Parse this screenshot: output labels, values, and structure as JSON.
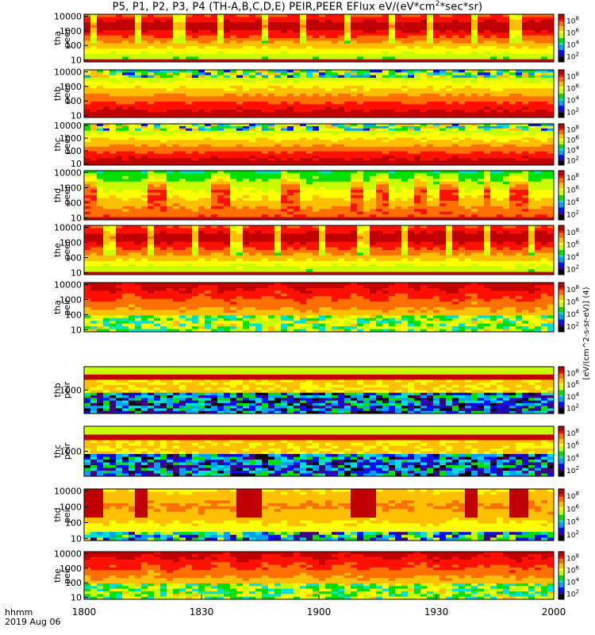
{
  "title": {
    "prefix": "P5, P1, P2, P3, P4 (TH-A,B,C,D,E) PEIR,PEER EFlux eV/(eV*cm",
    "sup1": "2",
    "suffix": "*sec*sr)"
  },
  "footer": {
    "line1": "hhmm",
    "line2": "2019 Aug 06"
  },
  "colors": {
    "palette": [
      "#000000",
      "#3a0080",
      "#0010ff",
      "#00a0ff",
      "#00e0d0",
      "#00e000",
      "#c8ff00",
      "#ffff00",
      "#ffc000",
      "#ff7000",
      "#ff1000",
      "#c00000"
    ]
  },
  "chart_data": {
    "type": "heatmap",
    "x": {
      "range": [
        "18:00",
        "20:00"
      ],
      "tick_labels": [
        "1800",
        "1830",
        "1900",
        "1930",
        "2000"
      ]
    },
    "colorbar_label": "[eV/(cm^2-s-sr-eV)] (4)",
    "panels": [
      {
        "id": "tha_peer",
        "ylabel": [
          "tha",
          "peer"
        ],
        "yticks": [
          "10",
          "100",
          "1000",
          "10000"
        ],
        "log": true,
        "cb_ticks": [
          "10^2",
          "10^4",
          "10^6",
          "10^8"
        ],
        "pattern": "peer_a",
        "base": 0.6
      },
      {
        "id": "thb_peer",
        "ylabel": [
          "thb",
          "peer"
        ],
        "yticks": [
          "10",
          "100",
          "1000",
          "10000"
        ],
        "log": true,
        "cb_ticks": [
          "10^2",
          "10^4",
          "10^6",
          "10^8"
        ],
        "pattern": "peer_b",
        "base": 0.55
      },
      {
        "id": "thc_peer",
        "ylabel": [
          "thc",
          "peer"
        ],
        "yticks": [
          "10",
          "100",
          "1000",
          "10000"
        ],
        "log": true,
        "cb_ticks": [
          "10^2",
          "10^4",
          "10^6",
          "10^8"
        ],
        "pattern": "peer_c",
        "base": 0.55
      },
      {
        "id": "thd_peer",
        "ylabel": [
          "thd",
          "peer"
        ],
        "yticks": [
          "10",
          "100",
          "1000",
          "10000"
        ],
        "log": true,
        "cb_ticks": [
          "10^2",
          "10^4",
          "10^6",
          "10^8"
        ],
        "pattern": "peer_d",
        "base": 0.6
      },
      {
        "id": "the_peer",
        "ylabel": [
          "the",
          "peer"
        ],
        "yticks": [
          "10",
          "100",
          "1000",
          "10000"
        ],
        "log": true,
        "cb_ticks": [
          "10^2",
          "10^4",
          "10^6",
          "10^8"
        ],
        "pattern": "peer_e",
        "base": 0.62
      },
      {
        "id": "tha_peir",
        "ylabel": [
          "tha",
          "peir"
        ],
        "yticks": [
          "10",
          "100",
          "1000",
          "10000"
        ],
        "log": true,
        "cb_ticks": [
          "10^2",
          "10^4",
          "10^6",
          "10^8"
        ],
        "pattern": "peir_a",
        "base": 0.5
      },
      {
        "id": "thb_peir",
        "ylabel": [
          "thb",
          "peir"
        ],
        "yticks": [
          "1000"
        ],
        "log": true,
        "cb_ticks": [
          "10^2",
          "10^4",
          "10^6",
          "10^8"
        ],
        "pattern": "peir_b",
        "base": 0.45
      },
      {
        "id": "thc_peir",
        "ylabel": [
          "thc",
          "peir"
        ],
        "yticks": [
          "1000"
        ],
        "log": true,
        "cb_ticks": [
          "10^2",
          "10^4",
          "10^6",
          "10^8"
        ],
        "pattern": "peir_c",
        "base": 0.45
      },
      {
        "id": "thd_peir",
        "ylabel": [
          "thd",
          "peir"
        ],
        "yticks": [
          "10",
          "100",
          "1000",
          "10000"
        ],
        "log": true,
        "cb_ticks": [
          "10^2",
          "10^4",
          "10^6",
          "10^8"
        ],
        "pattern": "peir_d",
        "base": 0.5
      },
      {
        "id": "the_peir",
        "ylabel": [
          "the",
          "peir"
        ],
        "yticks": [
          "10",
          "100",
          "1000",
          "10000"
        ],
        "log": true,
        "cb_ticks": [
          "10^2",
          "10^4",
          "10^6",
          "10^8"
        ],
        "pattern": "peir_e",
        "base": 0.5
      }
    ]
  }
}
